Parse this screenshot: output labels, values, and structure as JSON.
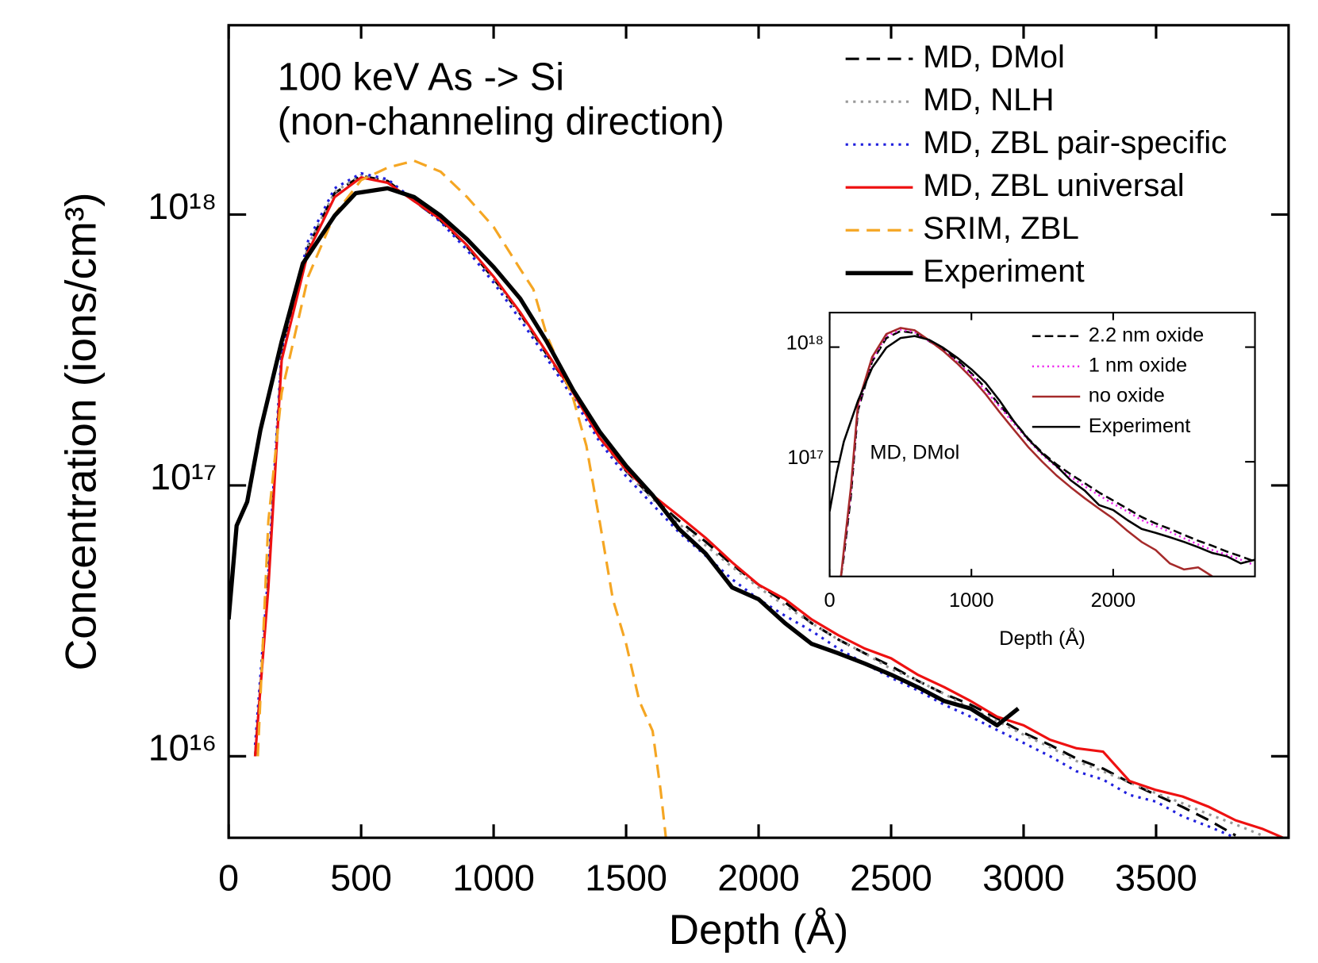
{
  "chart_data": [
    {
      "type": "line",
      "ylog": true,
      "grid": false,
      "legend": "upper right",
      "annotation": [
        "100 keV As -> Si",
        "(non-channeling direction)"
      ],
      "xlabel": "Depth (Å)",
      "ylabel": "Concentration (ions/cm³)",
      "xlim": [
        0,
        4000
      ],
      "ylim": [
        5000000000000000.0,
        5e+18
      ],
      "xticks": [
        0,
        500,
        1000,
        1500,
        2000,
        2500,
        3000,
        3500
      ],
      "yticks": [
        {
          "value": 1e+16,
          "label": "10¹⁶"
        },
        {
          "value": 1e+17,
          "label": "10¹⁷"
        },
        {
          "value": 1e+18,
          "label": "10¹⁸"
        }
      ],
      "series": [
        {
          "name": "MD, DMol",
          "color": "#000000",
          "linestyle": "dashed",
          "linewidth": "normal",
          "x": [
            100,
            150,
            200,
            300,
            400,
            500,
            600,
            700,
            800,
            900,
            1000,
            1100,
            1200,
            1300,
            1400,
            1500,
            1600,
            1700,
            1800,
            1900,
            2000,
            2100,
            2200,
            2300,
            2400,
            2500,
            2600,
            2700,
            2800,
            2900,
            3000,
            3100,
            3200,
            3300,
            3400,
            3500,
            3600,
            3700,
            3800
          ],
          "values": [
            1e+16,
            4.4e+16,
            3e+17,
            7.6e+17,
            1.2e+18,
            1.39e+18,
            1.33e+18,
            1.12e+18,
            9.5e+17,
            7.6e+17,
            5.8e+17,
            4.3e+17,
            3.05e+17,
            2.2e+17,
            1.5e+17,
            1.13e+17,
            9e+16,
            7.4e+16,
            6.2e+16,
            5.1e+16,
            4.3e+16,
            3.7e+16,
            3.1e+16,
            2.7e+16,
            2.4e+16,
            2.15e+16,
            1.9e+16,
            1.7e+16,
            1.55e+16,
            1.38e+16,
            1.22e+16,
            1.1e+16,
            9800000000000000.0,
            9000000000000000.0,
            8000000000000000.0,
            7200000000000000.0,
            6500000000000000.0,
            5800000000000000.0,
            5100000000000000.0
          ]
        },
        {
          "name": "MD, NLH",
          "color": "#999999",
          "linestyle": "dotted",
          "linewidth": "normal",
          "x": [
            100,
            150,
            200,
            300,
            400,
            500,
            600,
            700,
            800,
            900,
            1000,
            1100,
            1200,
            1300,
            1400,
            1500,
            1600,
            1700,
            1800,
            1900,
            2000,
            2100,
            2200,
            2300,
            2400,
            2500,
            2600,
            2700,
            2800,
            2900,
            3000,
            3100,
            3200,
            3300,
            3400,
            3500,
            3600,
            3700,
            3800,
            3900
          ],
          "values": [
            1e+16,
            4.5e+16,
            3e+17,
            7.7e+17,
            1.21e+18,
            1.4e+18,
            1.33e+18,
            1.12e+18,
            9.5e+17,
            7.6e+17,
            5.8e+17,
            4.3e+17,
            3.05e+17,
            2.2e+17,
            1.5e+17,
            1.12e+17,
            8.9e+16,
            7.2e+16,
            6e+16,
            5e+16,
            4.2e+16,
            3.6e+16,
            3.1e+16,
            2.7e+16,
            2.4e+16,
            2.1e+16,
            1.9e+16,
            1.7e+16,
            1.5e+16,
            1.35e+16,
            1.2e+16,
            1.08e+16,
            9600000000000000.0,
            8800000000000000.0,
            8000000000000000.0,
            7300000000000000.0,
            6700000000000000.0,
            6100000000000000.0,
            5600000000000000.0,
            5100000000000000.0
          ]
        },
        {
          "name": "MD, ZBL pair-specific",
          "color": "#1f1fdd",
          "linestyle": "dotted",
          "linewidth": "normal",
          "x": [
            100,
            150,
            200,
            300,
            400,
            500,
            600,
            700,
            800,
            900,
            1000,
            1100,
            1200,
            1300,
            1400,
            1500,
            1600,
            1700,
            1800,
            1900,
            2000,
            2100,
            2200,
            2300,
            2400,
            2500,
            2600,
            2700,
            2800,
            2900,
            3000,
            3100,
            3200,
            3300,
            3400,
            3500,
            3600,
            3700,
            3800
          ],
          "values": [
            1.1e+16,
            4.8e+16,
            3.2e+17,
            8e+17,
            1.25e+18,
            1.42e+18,
            1.35e+18,
            1.13e+18,
            9.4e+17,
            7.4e+17,
            5.6e+17,
            4.1e+17,
            2.95e+17,
            2.1e+17,
            1.45e+17,
            1.08e+17,
            8.5e+16,
            6.7e+16,
            5.5e+16,
            4.5e+16,
            3.8e+16,
            3.3e+16,
            2.9e+16,
            2.5e+16,
            2.2e+16,
            1.95e+16,
            1.75e+16,
            1.55e+16,
            1.4e+16,
            1.25e+16,
            1.12e+16,
            1e+16,
            8800000000000000.0,
            8200000000000000.0,
            7200000000000000.0,
            6800000000000000.0,
            6000000000000000.0,
            5500000000000000.0,
            5000000000000000.0
          ]
        },
        {
          "name": "MD, ZBL universal",
          "color": "#ee1111",
          "linestyle": "solid",
          "linewidth": "normal",
          "x": [
            100,
            150,
            200,
            300,
            400,
            500,
            600,
            700,
            800,
            900,
            1000,
            1100,
            1200,
            1300,
            1400,
            1500,
            1600,
            1700,
            1800,
            1900,
            2000,
            2100,
            2200,
            2300,
            2400,
            2500,
            2600,
            2700,
            2800,
            2900,
            3000,
            3100,
            3200,
            3300,
            3400,
            3500,
            3600,
            3700,
            3800,
            3900,
            3980
          ],
          "values": [
            1e+16,
            4.2e+16,
            2.9e+17,
            7.3e+17,
            1.16e+18,
            1.37e+18,
            1.31e+18,
            1.12e+18,
            9.6e+17,
            7.7e+17,
            5.9e+17,
            4.36e+17,
            3.1e+17,
            2.2e+17,
            1.5e+17,
            1.14e+17,
            9.2e+16,
            7.7e+16,
            6.4e+16,
            5.2e+16,
            4.3e+16,
            3.8e+16,
            3.2e+16,
            2.8e+16,
            2.5e+16,
            2.3e+16,
            2e+16,
            1.8e+16,
            1.6e+16,
            1.4e+16,
            1.3e+16,
            1.15e+16,
            1.07e+16,
            1.04e+16,
            8100000000000000.0,
            7500000000000000.0,
            7100000000000000.0,
            6500000000000000.0,
            5800000000000000.0,
            5400000000000000.0,
            5000000000000000.0
          ]
        },
        {
          "name": "SRIM, ZBL",
          "color": "#f5a623",
          "linestyle": "dashed",
          "linewidth": "normal",
          "x": [
            110,
            150,
            200,
            300,
            400,
            500,
            600,
            700,
            800,
            900,
            1000,
            1100,
            1150,
            1200,
            1300,
            1350,
            1400,
            1450,
            1500,
            1550,
            1600,
            1630,
            1650
          ],
          "values": [
            1e+16,
            7.4e+16,
            2.2e+17,
            5.9e+17,
            1e+18,
            1.34e+18,
            1.49e+18,
            1.58e+18,
            1.44e+18,
            1.16e+18,
            9e+17,
            6.3e+17,
            5.3e+17,
            3.6e+17,
            2.1e+17,
            1.4e+17,
            7.4e+16,
            3.8e+16,
            2.6e+16,
            1.6e+16,
            1.24e+16,
            7500000000000000.0,
            5000000000000000.0
          ]
        },
        {
          "name": "Experiment",
          "color": "#000000",
          "linestyle": "solid",
          "linewidth": "thick",
          "x": [
            0,
            30,
            70,
            120,
            200,
            280,
            400,
            480,
            600,
            700,
            800,
            900,
            1000,
            1100,
            1200,
            1300,
            1400,
            1500,
            1600,
            1700,
            1800,
            1900,
            2000,
            2100,
            2200,
            2300,
            2400,
            2500,
            2600,
            2700,
            2800,
            2900,
            2980
          ],
          "values": [
            3.2e+16,
            7.1e+16,
            8.7e+16,
            1.6e+17,
            3.4e+17,
            6.6e+17,
            9.9e+17,
            1.2e+18,
            1.25e+18,
            1.16e+18,
            9.9e+17,
            8.1e+17,
            6.4e+17,
            4.9e+17,
            3.4e+17,
            2.25e+17,
            1.58e+17,
            1.18e+17,
            9.2e+16,
            6.9e+16,
            5.6e+16,
            4.2e+16,
            3.8e+16,
            3.1e+16,
            2.6e+16,
            2.4e+16,
            2.2e+16,
            2e+16,
            1.8e+16,
            1.6e+16,
            1.5e+16,
            1.3e+16,
            1.5e+16
          ]
        }
      ]
    },
    {
      "type": "line",
      "ylog": true,
      "grid": false,
      "legend": "upper right",
      "annotation": [
        "MD, DMol"
      ],
      "xlabel": "Depth (Å)",
      "xlim": [
        0,
        3000
      ],
      "ylim": [
        1e+16,
        2e+18
      ],
      "xticks": [
        0,
        1000,
        2000
      ],
      "yticks": [
        {
          "value": 1e+17,
          "label": "10¹⁷"
        },
        {
          "value": 1e+18,
          "label": "10¹⁸"
        }
      ],
      "series": [
        {
          "name": "2.2 nm oxide",
          "color": "#000000",
          "linestyle": "dashed",
          "linewidth": "normal",
          "x": [
            80,
            100,
            150,
            200,
            300,
            400,
            500,
            600,
            700,
            800,
            900,
            1000,
            1100,
            1200,
            1300,
            1400,
            1500,
            1600,
            1700,
            1800,
            1900,
            2000,
            2100,
            2200,
            2300,
            2400,
            2500,
            2600,
            2700,
            2800,
            2900,
            3000
          ],
          "values": [
            1e+16,
            1.5e+16,
            5e+16,
            2.8e+17,
            7.5e+17,
            1.2e+18,
            1.38e+18,
            1.33e+18,
            1.13e+18,
            9.6e+17,
            7.7e+17,
            5.9e+17,
            4.4e+17,
            3.1e+17,
            2.25e+17,
            1.6e+17,
            1.2e+17,
            9.5e+16,
            7.8e+16,
            6.5e+16,
            5.4e+16,
            4.6e+16,
            3.9e+16,
            3.3e+16,
            2.9e+16,
            2.6e+16,
            2.3e+16,
            2.05e+16,
            1.85e+16,
            1.65e+16,
            1.5e+16,
            1.35e+16
          ]
        },
        {
          "name": "1 nm oxide",
          "color": "#ee22ee",
          "linestyle": "dotted",
          "linewidth": "normal",
          "x": [
            80,
            100,
            150,
            200,
            300,
            400,
            500,
            600,
            700,
            800,
            900,
            1000,
            1100,
            1200,
            1300,
            1400,
            1500,
            1600,
            1700,
            1800,
            1900,
            2000,
            2100,
            2200,
            2300,
            2400,
            2500,
            2600,
            2700,
            2800,
            2900,
            3000
          ],
          "values": [
            1e+16,
            1.6e+16,
            5.5e+16,
            3e+17,
            7.8e+17,
            1.25e+18,
            1.42e+18,
            1.35e+18,
            1.13e+18,
            9.4e+17,
            7.4e+17,
            5.7e+17,
            4.2e+17,
            3e+17,
            2.15e+17,
            1.55e+17,
            1.15e+17,
            9e+16,
            7.4e+16,
            6.1e+16,
            5.1e+16,
            4.3e+16,
            3.7e+16,
            3.1e+16,
            2.75e+16,
            2.45e+16,
            2.15e+16,
            1.9e+16,
            1.7e+16,
            1.55e+16,
            1.4e+16,
            1.25e+16
          ]
        },
        {
          "name": "no oxide",
          "color": "#a52a2a",
          "linestyle": "solid",
          "linewidth": "normal",
          "x": [
            80,
            100,
            150,
            200,
            300,
            400,
            500,
            600,
            700,
            800,
            900,
            1000,
            1100,
            1200,
            1300,
            1400,
            1500,
            1600,
            1700,
            1800,
            1900,
            2000,
            2100,
            2200,
            2300,
            2400,
            2500,
            2600,
            2700
          ],
          "values": [
            1e+16,
            1.7e+16,
            6e+16,
            3.2e+17,
            8.2e+17,
            1.3e+18,
            1.47e+18,
            1.4e+18,
            1.15e+18,
            9.3e+17,
            7.2e+17,
            5.4e+17,
            3.9e+17,
            2.7e+17,
            1.9e+17,
            1.35e+17,
            1e+17,
            7.6e+16,
            6e+16,
            4.8e+16,
            3.9e+16,
            3.2e+16,
            2.5e+16,
            2e+16,
            1.7e+16,
            1.3e+16,
            1.15e+16,
            1.2e+16,
            1e+16
          ]
        },
        {
          "name": "Experiment",
          "color": "#000000",
          "linestyle": "solid",
          "linewidth": "normal",
          "x": [
            0,
            50,
            100,
            200,
            300,
            400,
            500,
            600,
            700,
            800,
            900,
            1000,
            1100,
            1200,
            1300,
            1400,
            1500,
            1600,
            1700,
            1800,
            1900,
            2000,
            2100,
            2200,
            2300,
            2400,
            2500,
            2600,
            2700,
            2800,
            2900,
            3000
          ],
          "values": [
            3.7e+16,
            8e+16,
            1.5e+17,
            3.4e+17,
            6.6e+17,
            9.9e+17,
            1.2e+18,
            1.25e+18,
            1.16e+18,
            9.9e+17,
            8.1e+17,
            6.4e+17,
            4.9e+17,
            3.4e+17,
            2.25e+17,
            1.58e+17,
            1.18e+17,
            9.2e+16,
            6.9e+16,
            5.6e+16,
            4.2e+16,
            3.8e+16,
            3.1e+16,
            2.6e+16,
            2.4e+16,
            2.2e+16,
            2e+16,
            1.8e+16,
            1.6e+16,
            1.5e+16,
            1.3e+16,
            1.4e+16
          ]
        }
      ]
    }
  ]
}
